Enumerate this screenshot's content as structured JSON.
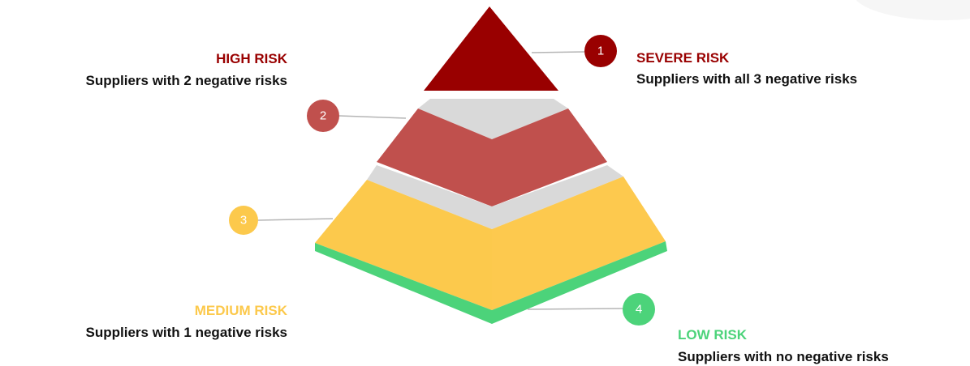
{
  "levels": [
    {
      "number": "1",
      "title": "SEVERE RISK",
      "description": "Suppliers with all 3 negative risks"
    },
    {
      "number": "2",
      "title": "HIGH RISK",
      "description": "Suppliers with 2 negative risks"
    },
    {
      "number": "3",
      "title": "MEDIUM RISK",
      "description": "Suppliers with 1 negative risks"
    },
    {
      "number": "4",
      "title": "LOW RISK",
      "description": "Suppliers with no negative risks"
    }
  ]
}
